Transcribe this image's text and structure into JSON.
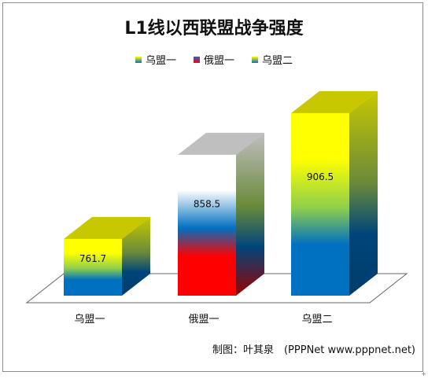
{
  "chart_data": {
    "type": "bar",
    "title": "L1线以西联盟战争强度",
    "categories": [
      "乌盟一",
      "俄盟一",
      "乌盟二"
    ],
    "series": [
      {
        "name": "",
        "values": [
          761.7,
          858.5,
          906.5
        ],
        "colors": [
          {
            "top": "#ffff00",
            "mid": "#8ecf4c",
            "bottom": "#0070c0",
            "cap": "#c8c800"
          },
          {
            "top": "#ffffff",
            "mid": "#0070c0",
            "bottom": "#ff0000",
            "cap": "#bfbfbf"
          },
          {
            "top": "#ffff00",
            "mid": "#8ecf4c",
            "bottom": "#0070c0",
            "cap": "#c8c800"
          }
        ]
      }
    ],
    "ylim": [
      700,
      920
    ],
    "xlabel": "",
    "ylabel": "",
    "grid": false,
    "legend_position": "top-center",
    "legend": [
      {
        "label": "乌盟一",
        "swatch_top": "#ffff00",
        "swatch_bottom": "#0070c0"
      },
      {
        "label": "俄盟一",
        "swatch_top": "#3060c0",
        "swatch_bottom": "#ff0000"
      },
      {
        "label": "乌盟二",
        "swatch_top": "#ffff00",
        "swatch_bottom": "#0070c0"
      }
    ]
  },
  "credit": "制图：叶其泉　(PPPNet  www.pppnet.net)",
  "corner_mark": "+"
}
